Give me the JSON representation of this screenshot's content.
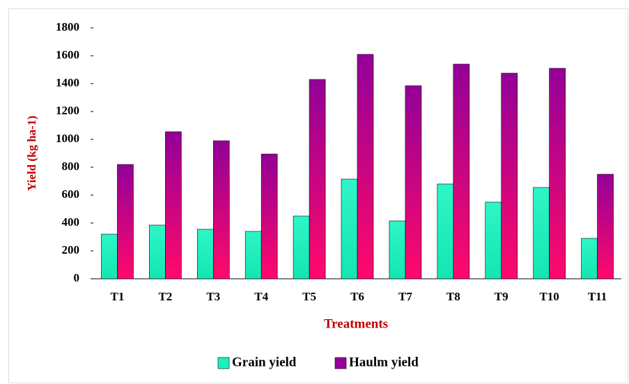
{
  "chart_data": {
    "type": "bar",
    "x_label": "Treatments",
    "y_label": "Yield (kg ha-1)",
    "categories": [
      "T1",
      "T2",
      "T3",
      "T4",
      "T5",
      "T6",
      "T7",
      "T8",
      "T9",
      "T10",
      "T11"
    ],
    "series": [
      {
        "name": "Grain yield",
        "color": "#1ff0c0",
        "values": [
          320,
          385,
          355,
          340,
          450,
          715,
          415,
          680,
          550,
          655,
          290
        ]
      },
      {
        "name": "Haulm yield",
        "color": "#990099",
        "values": [
          820,
          1055,
          990,
          895,
          1430,
          1610,
          1385,
          1540,
          1475,
          1510,
          750
        ]
      }
    ],
    "ylim": [
      0,
      1800
    ],
    "yticks": [
      0,
      200,
      400,
      600,
      800,
      1000,
      1200,
      1400,
      1600,
      1800
    ],
    "legend": "bottom"
  }
}
